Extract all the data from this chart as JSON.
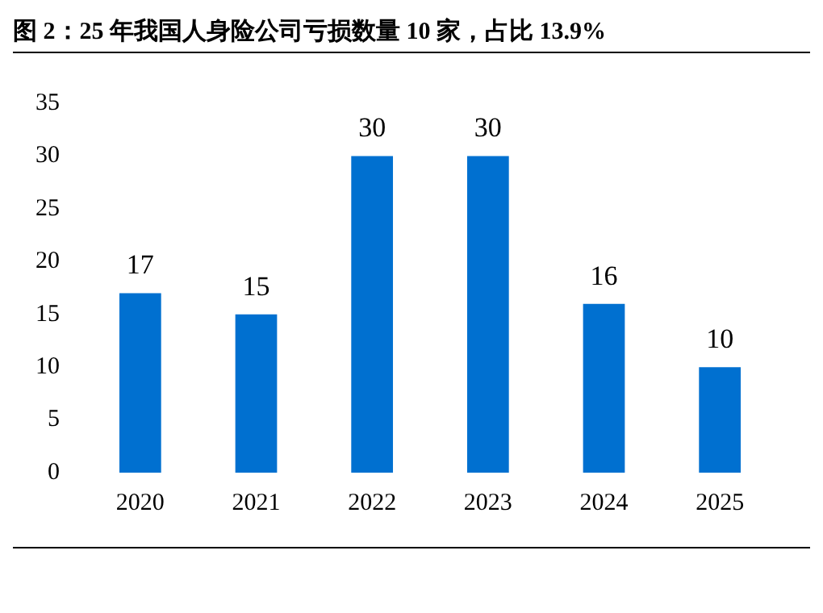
{
  "chart_data": {
    "type": "bar",
    "title": "图 2：25 年我国人身险公司亏损数量 10 家，占比 13.9%",
    "categories": [
      "2020",
      "2021",
      "2022",
      "2023",
      "2024",
      "2025"
    ],
    "values": [
      17,
      15,
      30,
      30,
      16,
      10
    ],
    "color": "#0070d0",
    "ylim": [
      0,
      35
    ],
    "yticks": [
      0,
      5,
      10,
      15,
      20,
      25,
      30,
      35
    ],
    "grid": false,
    "legend": false,
    "data_labels": true
  }
}
